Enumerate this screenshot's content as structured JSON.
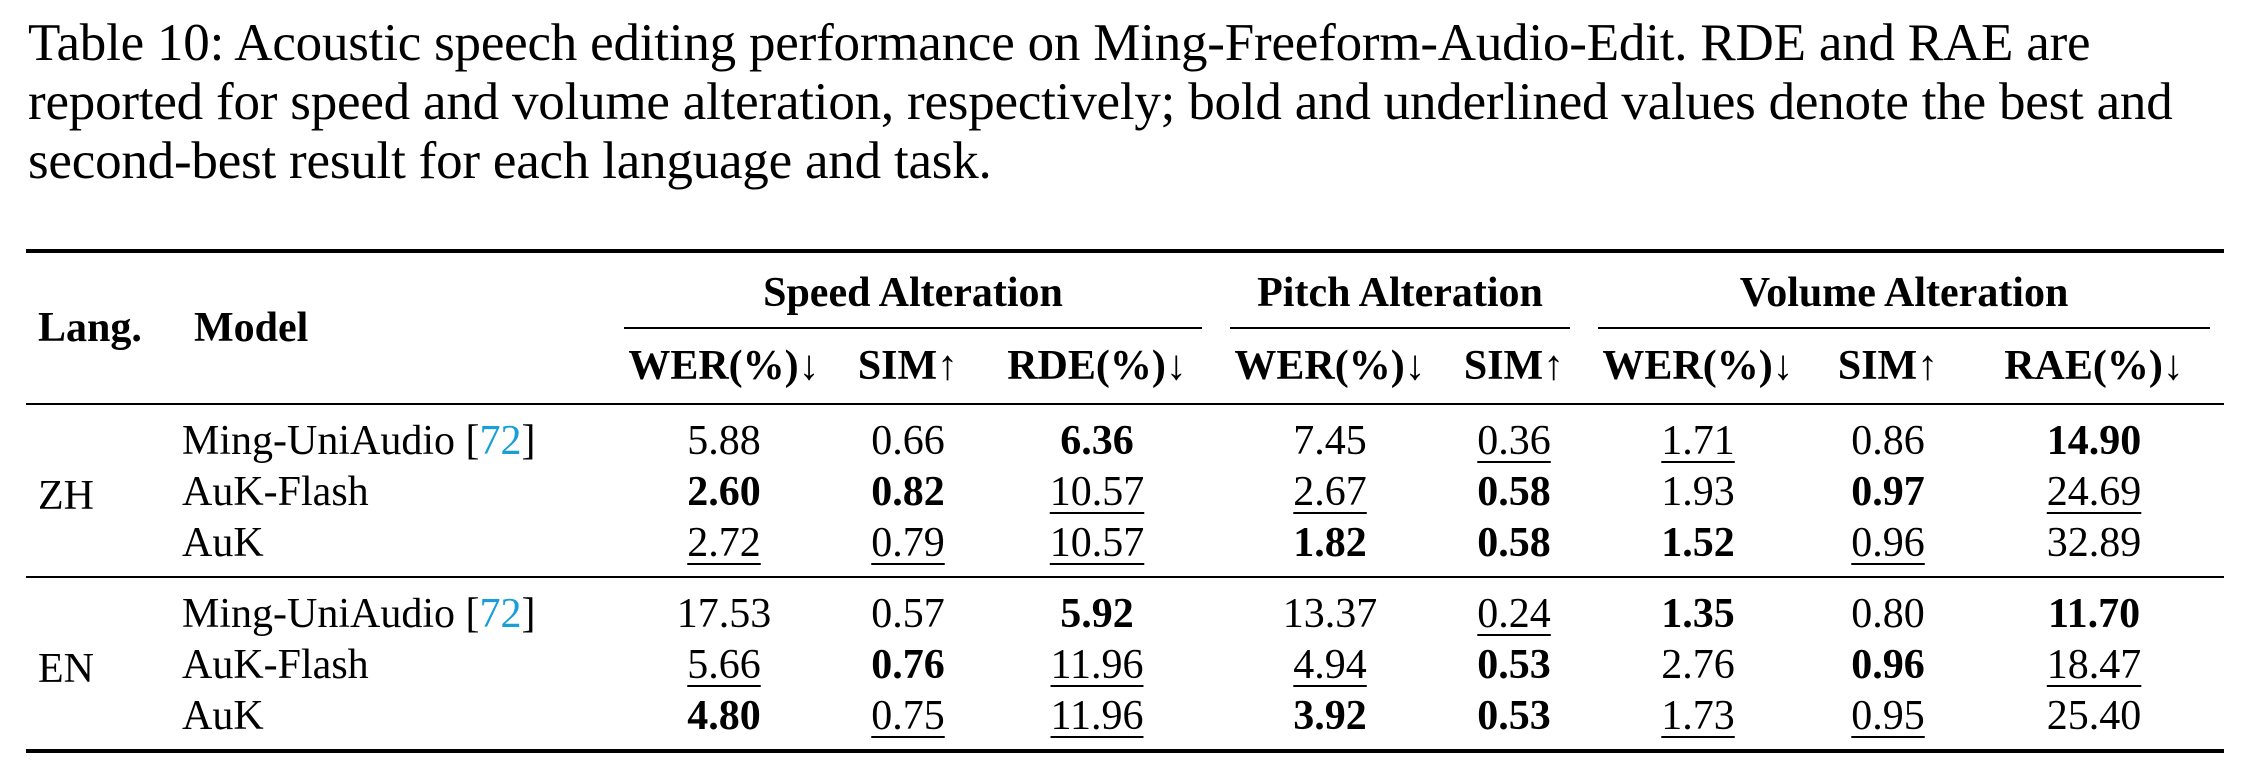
{
  "caption": "Table 10: Acoustic speech editing performance on Ming-Freeform-Audio-Edit. RDE and RAE are reported for speed and volume alteration, respectively; bold and underlined values denote the best and second-best result for each language and task.",
  "table": {
    "headers": {
      "lang": "Lang.",
      "model": "Model",
      "groups": [
        "Speed Alteration",
        "Pitch Alteration",
        "Volume Alteration"
      ],
      "columns": [
        "WER(%)↓",
        "SIM↑",
        "RDE(%)↓",
        "WER(%)↓",
        "SIM↑",
        "WER(%)↓",
        "SIM↑",
        "RAE(%)↓"
      ]
    },
    "sections": [
      {
        "lang": "ZH",
        "rows": [
          {
            "model": "Ming-UniAudio [",
            "cite": "72",
            "cite_close": "]",
            "values": [
              "5.88",
              "0.66",
              "6.36",
              "7.45",
              "0.36",
              "1.71",
              "0.86",
              "14.90"
            ],
            "styles": [
              "",
              "",
              "bold",
              "",
              "underline",
              "underline",
              "",
              "bold"
            ]
          },
          {
            "model": "AuK-Flash",
            "values": [
              "2.60",
              "0.82",
              "10.57",
              "2.67",
              "0.58",
              "1.93",
              "0.97",
              "24.69"
            ],
            "styles": [
              "bold",
              "bold",
              "underline",
              "underline",
              "bold",
              "",
              "bold",
              "underline"
            ]
          },
          {
            "model": "AuK",
            "values": [
              "2.72",
              "0.79",
              "10.57",
              "1.82",
              "0.58",
              "1.52",
              "0.96",
              "32.89"
            ],
            "styles": [
              "underline",
              "underline",
              "underline",
              "bold",
              "bold",
              "bold",
              "underline",
              ""
            ]
          }
        ]
      },
      {
        "lang": "EN",
        "rows": [
          {
            "model": "Ming-UniAudio [",
            "cite": "72",
            "cite_close": "]",
            "values": [
              "17.53",
              "0.57",
              "5.92",
              "13.37",
              "0.24",
              "1.35",
              "0.80",
              "11.70"
            ],
            "styles": [
              "",
              "",
              "bold",
              "",
              "underline",
              "bold",
              "",
              "bold"
            ]
          },
          {
            "model": "AuK-Flash",
            "values": [
              "5.66",
              "0.76",
              "11.96",
              "4.94",
              "0.53",
              "2.76",
              "0.96",
              "18.47"
            ],
            "styles": [
              "underline",
              "bold",
              "underline",
              "underline",
              "bold",
              "",
              "bold",
              "underline"
            ]
          },
          {
            "model": "AuK",
            "values": [
              "4.80",
              "0.75",
              "11.96",
              "3.92",
              "0.53",
              "1.73",
              "0.95",
              "25.40"
            ],
            "styles": [
              "bold",
              "underline",
              "underline",
              "bold",
              "bold",
              "underline",
              "underline",
              ""
            ]
          }
        ]
      }
    ]
  }
}
